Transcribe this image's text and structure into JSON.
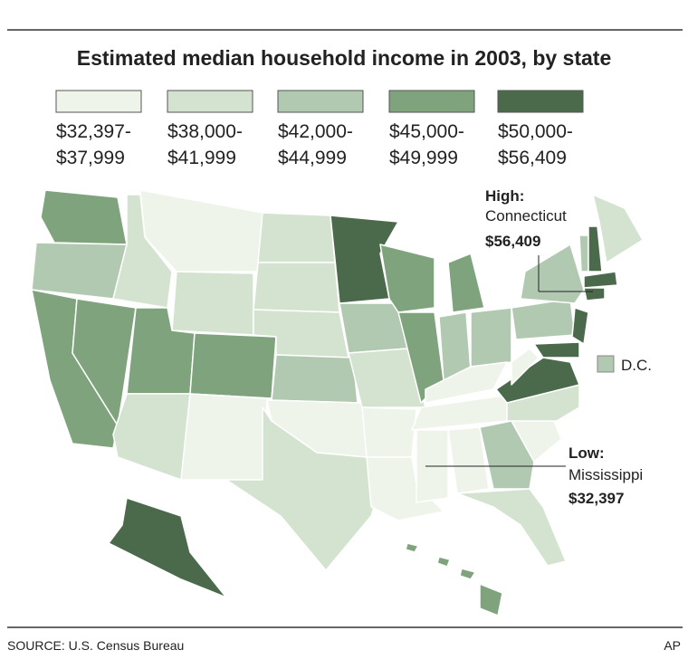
{
  "header": {
    "title": "Estimated median household income in 2003, by state"
  },
  "legend": [
    {
      "from": "$32,397-",
      "to": "$37,999",
      "color": "#eef4ea"
    },
    {
      "from": "$38,000-",
      "to": "$41,999",
      "color": "#d3e3d0"
    },
    {
      "from": "$42,000-",
      "to": "$44,999",
      "color": "#b2c9b1"
    },
    {
      "from": "$45,000-",
      "to": "$49,999",
      "color": "#7ea37d"
    },
    {
      "from": "$50,000-",
      "to": "$56,409",
      "color": "#4b694b"
    }
  ],
  "map": {
    "dc_label": "D.C.",
    "high": {
      "heading": "High:",
      "state": "Connecticut",
      "value": "$56,409"
    },
    "low": {
      "heading": "Low:",
      "state": "Mississippi",
      "value": "$32,397"
    }
  },
  "footer": {
    "source": "SOURCE: U.S. Census Bureau",
    "credit": "AP"
  }
}
